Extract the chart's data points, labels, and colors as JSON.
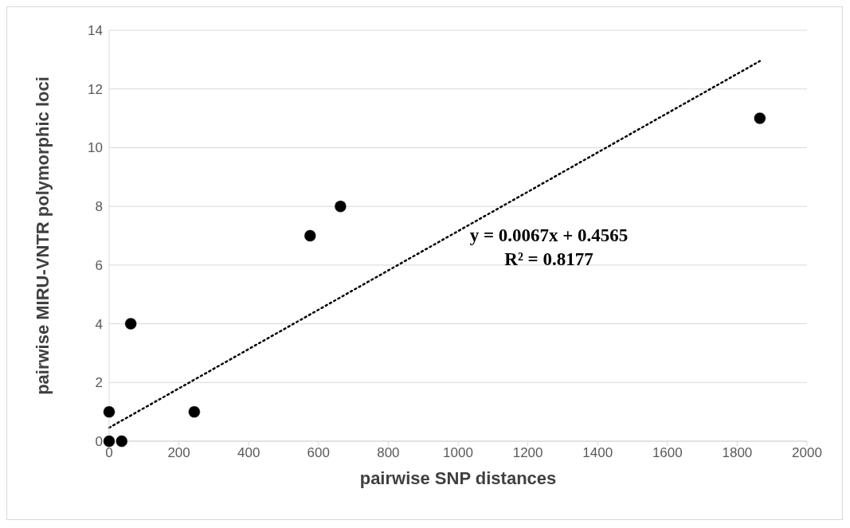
{
  "chart_data": {
    "type": "scatter",
    "xlabel": "pairwise SNP distances",
    "ylabel": "pairwise MIRU-VNTR polymorphic loci",
    "xlim": [
      0,
      2000
    ],
    "xticks": [
      0,
      200,
      400,
      600,
      800,
      1000,
      1200,
      1400,
      1600,
      1800,
      2000
    ],
    "ylim": [
      0,
      14
    ],
    "yticks": [
      0,
      2,
      4,
      6,
      8,
      10,
      12,
      14
    ],
    "grid": "y",
    "annotations": [
      "y = 0.0067x + 0.4565",
      "R² = 0.8177"
    ],
    "series": [
      {
        "color": "#000000",
        "marker": "circle",
        "x": [
          0,
          0,
          36,
          62,
          244,
          576,
          663,
          1865
        ],
        "values": [
          1,
          0,
          0,
          4,
          1,
          7,
          8,
          11
        ]
      },
      {
        "type": "line",
        "color": "#000000",
        "marker": "none",
        "line_style": "dotted",
        "x": [
          0,
          1865
        ],
        "values": [
          0.46,
          12.95
        ]
      }
    ]
  }
}
